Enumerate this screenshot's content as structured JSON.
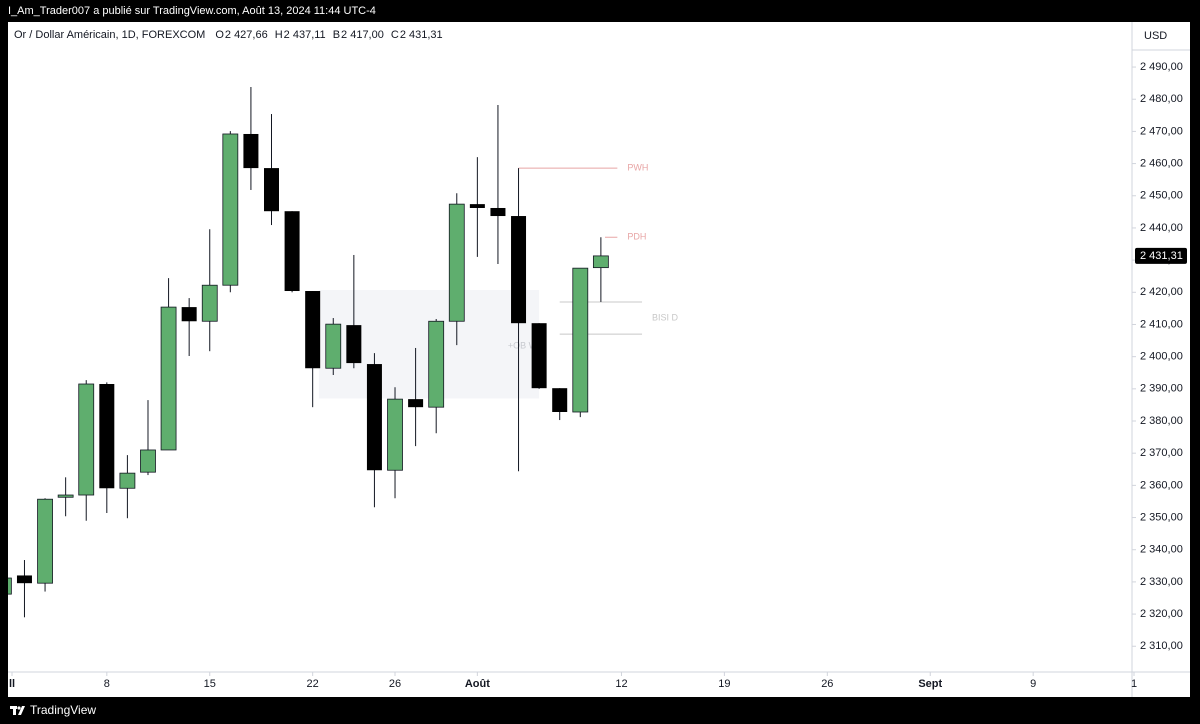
{
  "header": {
    "published": "I_Am_Trader007 a publié sur TradingView.com, Août 13, 2024 11:44 UTC-4",
    "symbol": "Or / Dollar Américain, 1D, FOREXCOM",
    "ohlc": [
      {
        "key": "O",
        "value": "2 427,66"
      },
      {
        "key": "H",
        "value": "2 437,11"
      },
      {
        "key": "B",
        "value": "2 417,00"
      },
      {
        "key": "C",
        "value": "2 431,31"
      }
    ]
  },
  "footer": {
    "brand": "TradingView"
  },
  "chart_data": {
    "type": "candlestick",
    "y_axis_unit": "USD",
    "up_color": "#5fae6e",
    "down_color": "#000000",
    "x": [
      0,
      1,
      2,
      3,
      4,
      5,
      6,
      7,
      8,
      9,
      10,
      11,
      12,
      13,
      14,
      15,
      16,
      17,
      18,
      19,
      20,
      21,
      22,
      23,
      24,
      25,
      26,
      27,
      28,
      29
    ],
    "open": [
      2326.2,
      2332,
      2329.6,
      2356.3,
      2357,
      2391.5,
      2359.1,
      2364.1,
      2371,
      2415.4,
      2411,
      2422.2,
      2469.2,
      2458.6,
      2445.2,
      2420.4,
      2396.4,
      2409.8,
      2397.7,
      2364.7,
      2386.8,
      2384.3,
      2411,
      2447.4,
      2446.2,
      2443.7,
      2410.4,
      2390.2,
      2382.8,
      2427.66
    ],
    "high": [
      2332,
      2336.8,
      2356,
      2362.5,
      2392.7,
      2392,
      2369.4,
      2386.5,
      2424.4,
      2418.2,
      2439.6,
      2470.1,
      2483.8,
      2475.4,
      2445.2,
      2420.4,
      2412,
      2431.6,
      2401.1,
      2390.5,
      2402.7,
      2411.7,
      2450.8,
      2462,
      2478.2,
      2458.6,
      2410.4,
      2390.2,
      2427.5,
      2437.11
    ],
    "low": [
      2325,
      2319,
      2327,
      2350.4,
      2349,
      2351.4,
      2349.8,
      2363.2,
      2371,
      2400.2,
      2401.7,
      2420,
      2451.8,
      2440.9,
      2420,
      2384.3,
      2394.3,
      2396.4,
      2353.2,
      2356,
      2372.2,
      2376.2,
      2403.6,
      2431,
      2428.8,
      2364.4,
      2390,
      2380.3,
      2381.2,
      2417.0
    ],
    "close": [
      2331.2,
      2329.6,
      2355.7,
      2357,
      2391.5,
      2359.1,
      2363.8,
      2371,
      2415.4,
      2411,
      2422.2,
      2469.2,
      2458.6,
      2445.2,
      2420.4,
      2396.4,
      2410.1,
      2398,
      2364.7,
      2386.8,
      2384.3,
      2411,
      2447.4,
      2446.2,
      2443.7,
      2410.4,
      2390.2,
      2382.8,
      2427.5,
      2431.31
    ],
    "xlim": [
      0.2,
      54.8
    ],
    "xticks": [
      {
        "value": 0,
        "label": "ll"
      },
      {
        "value": 5,
        "label": "8"
      },
      {
        "value": 10,
        "label": "15"
      },
      {
        "value": 15,
        "label": "22"
      },
      {
        "value": 19,
        "label": "26"
      },
      {
        "value": 23,
        "label": "Août"
      },
      {
        "value": 30,
        "label": "12"
      },
      {
        "value": 35,
        "label": "19"
      },
      {
        "value": 40,
        "label": "26"
      },
      {
        "value": 45,
        "label": "Sept"
      },
      {
        "value": 50,
        "label": "9"
      },
      {
        "value": 55,
        "label": "1"
      }
    ],
    "ylim": [
      2302,
      2504
    ],
    "yticks": [
      {
        "value": 2310,
        "label": "2 310,00"
      },
      {
        "value": 2320,
        "label": "2 320,00"
      },
      {
        "value": 2330,
        "label": "2 330,00"
      },
      {
        "value": 2340,
        "label": "2 340,00"
      },
      {
        "value": 2350,
        "label": "2 350,00"
      },
      {
        "value": 2360,
        "label": "2 360,00"
      },
      {
        "value": 2370,
        "label": "2 370,00"
      },
      {
        "value": 2380,
        "label": "2 380,00"
      },
      {
        "value": 2390,
        "label": "2 390,00"
      },
      {
        "value": 2400,
        "label": "2 400,00"
      },
      {
        "value": 2410,
        "label": "2 410,00"
      },
      {
        "value": 2420,
        "label": "2 420,00"
      },
      {
        "value": 2430,
        "label": "2 430,00"
      },
      {
        "value": 2440,
        "label": "2 440,00"
      },
      {
        "value": 2450,
        "label": "2 450,00"
      },
      {
        "value": 2460,
        "label": "2 460,00"
      },
      {
        "value": 2470,
        "label": "2 470,00"
      },
      {
        "value": 2480,
        "label": "2 480,00"
      },
      {
        "value": 2490,
        "label": "2 490,00"
      }
    ],
    "price_label": {
      "value": 2431.31,
      "label": "2 431,31"
    },
    "zones": [
      {
        "label": "+OB W",
        "y": [
          2420.7,
          2387
        ],
        "x": [
          15.3,
          26
        ],
        "color": "#f4f5f8",
        "text_color": "#c8cad0"
      }
    ],
    "levels": [
      {
        "label": "PWH",
        "y": 2458.6,
        "x": [
          25,
          29.8
        ],
        "color": "#e8a5a5"
      },
      {
        "label": "PDH",
        "y": 2437.11,
        "x": [
          29.2,
          29.8
        ],
        "color": "#e8a5a5"
      },
      {
        "label": "BISI D",
        "y": 2417,
        "x": [
          27,
          31
        ],
        "color": "#c8c8c8"
      },
      {
        "y": 2407,
        "x": [
          27,
          31
        ],
        "color": "#c8c8c8"
      }
    ]
  }
}
